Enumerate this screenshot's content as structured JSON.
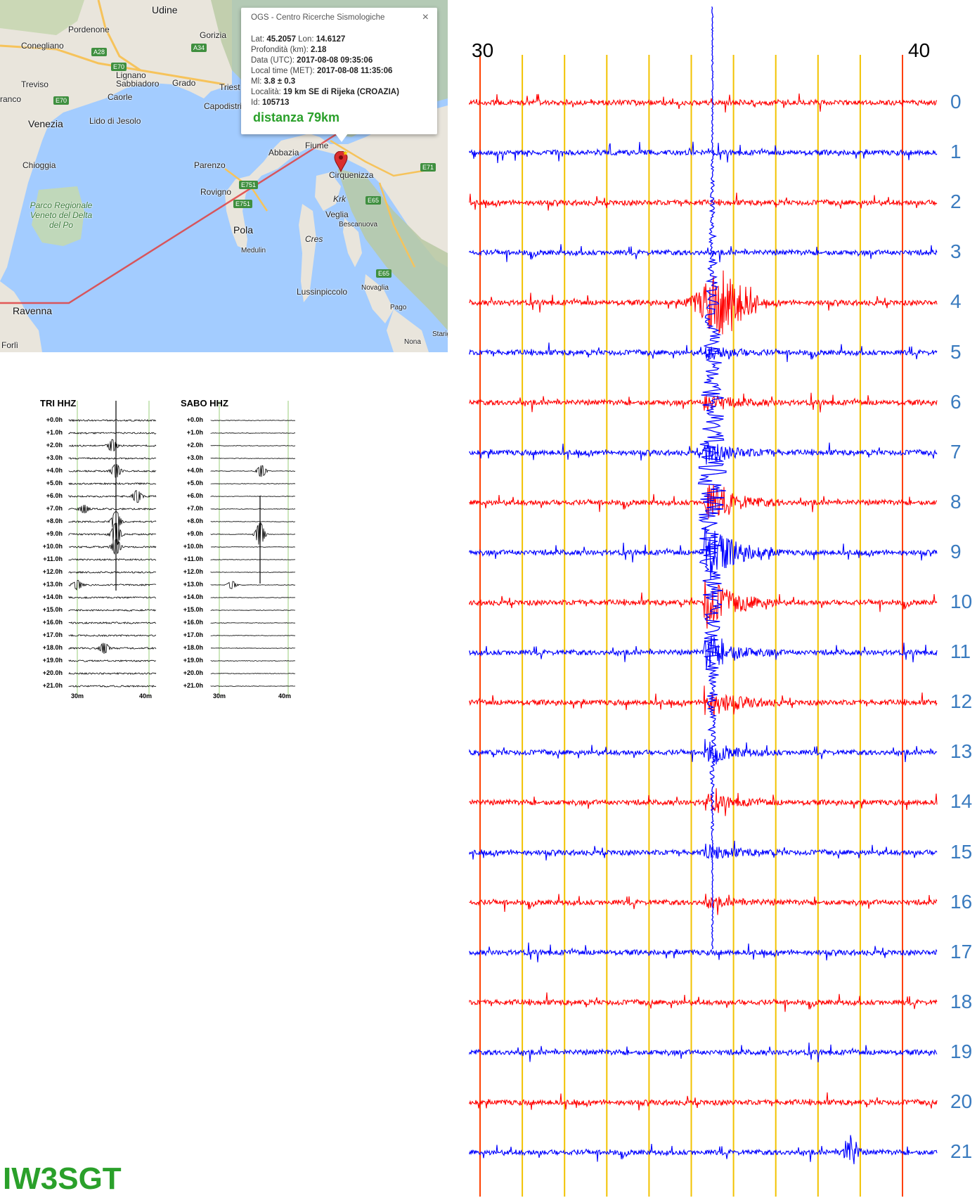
{
  "map": {
    "places": [
      {
        "name": "Udine"
      },
      {
        "name": "Pordenone"
      },
      {
        "name": "Conegliano"
      },
      {
        "name": "Gorizia"
      },
      {
        "name": "Treviso"
      },
      {
        "name": "Lignano Sabbiadoro"
      },
      {
        "name": "Grado"
      },
      {
        "name": "Caorle"
      },
      {
        "name": "Triest"
      },
      {
        "name": "Capodistri"
      },
      {
        "name": "Venezia"
      },
      {
        "name": "Lido di Jesolo"
      },
      {
        "name": "ranco"
      },
      {
        "name": "Fiume"
      },
      {
        "name": "Abbazia"
      },
      {
        "name": "Cirquenizza"
      },
      {
        "name": "Chioggia"
      },
      {
        "name": "Parenzo"
      },
      {
        "name": "Rovigno"
      },
      {
        "name": "Krk"
      },
      {
        "name": "Veglia"
      },
      {
        "name": "Bescanuova"
      },
      {
        "name": "Parco Regionale Veneto del Delta del Po"
      },
      {
        "name": "Pola"
      },
      {
        "name": "Cres"
      },
      {
        "name": "Medulin"
      },
      {
        "name": "Lussinpiccolo"
      },
      {
        "name": "Novaglia"
      },
      {
        "name": "Ravenna"
      },
      {
        "name": "Pago"
      },
      {
        "name": "Starig"
      },
      {
        "name": "Forlì"
      },
      {
        "name": "Nona"
      }
    ],
    "roads": [
      "A28",
      "A34",
      "E70",
      "E70",
      "E751",
      "E751",
      "E65",
      "E71",
      "E65"
    ],
    "popup": {
      "header": "OGS - Centro Ricerche Sismologiche",
      "close": "×",
      "rows": [
        {
          "label": "Lat: ",
          "value": "45.2057",
          "label2": " Lon: ",
          "value2": "14.6127"
        },
        {
          "label": "Profondità (km): ",
          "value": "2.18"
        },
        {
          "label": "Data (UTC): ",
          "value": "2017-08-08 09:35:06"
        },
        {
          "label": "Local time (MET): ",
          "value": "2017-08-08 11:35:06"
        },
        {
          "label": "Ml: ",
          "value": "3.8 ± 0.3"
        },
        {
          "label": "Località: ",
          "value": "19 km SE di Rijeka (CROAZIA)"
        },
        {
          "label": "Id: ",
          "value": "105713"
        }
      ],
      "distance": "distanza 79km"
    }
  },
  "helicorders": [
    {
      "title": "TRI HHZ",
      "labels": [
        "+0.0h",
        "+1.0h",
        "+2.0h",
        "+3.0h",
        "+4.0h",
        "+5.0h",
        "+6.0h",
        "+7.0h",
        "+8.0h",
        "+9.0h",
        "+10.0h",
        "+11.0h",
        "+12.0h",
        "+13.0h",
        "+14.0h",
        "+15.0h",
        "+16.0h",
        "+17.0h",
        "+18.0h",
        "+19.0h",
        "+20.0h",
        "+21.0h"
      ],
      "xticks": [
        "30m",
        "40m"
      ]
    },
    {
      "title": "SABO HHZ",
      "labels": [
        "+0.0h",
        "+1.0h",
        "+2.0h",
        "+3.0h",
        "+4.0h",
        "+5.0h",
        "+6.0h",
        "+7.0h",
        "+8.0h",
        "+9.0h",
        "+10.0h",
        "+11.0h",
        "+12.0h",
        "+13.0h",
        "+14.0h",
        "+15.0h",
        "+16.0h",
        "+17.0h",
        "+18.0h",
        "+19.0h",
        "+20.0h",
        "+21.0h"
      ],
      "xticks": [
        "30m",
        "40m"
      ]
    }
  ],
  "chart_data": {
    "type": "line",
    "x_tick_labels": [
      "30",
      "40"
    ],
    "xlim": [
      30,
      40
    ],
    "row_labels": [
      "0",
      "1",
      "2",
      "3",
      "4",
      "5",
      "6",
      "7",
      "8",
      "9",
      "10",
      "11",
      "12",
      "13",
      "14",
      "15",
      "16",
      "17",
      "18",
      "19",
      "20",
      "21"
    ],
    "grid": true,
    "colors": {
      "even": "#ff0000",
      "odd": "#0000ff",
      "minor_grid": "#f2c200",
      "major_grid": "#ff4000",
      "label": "#3a7bbf"
    },
    "event_minute": 35.5
  },
  "brand": "IW3SGT"
}
